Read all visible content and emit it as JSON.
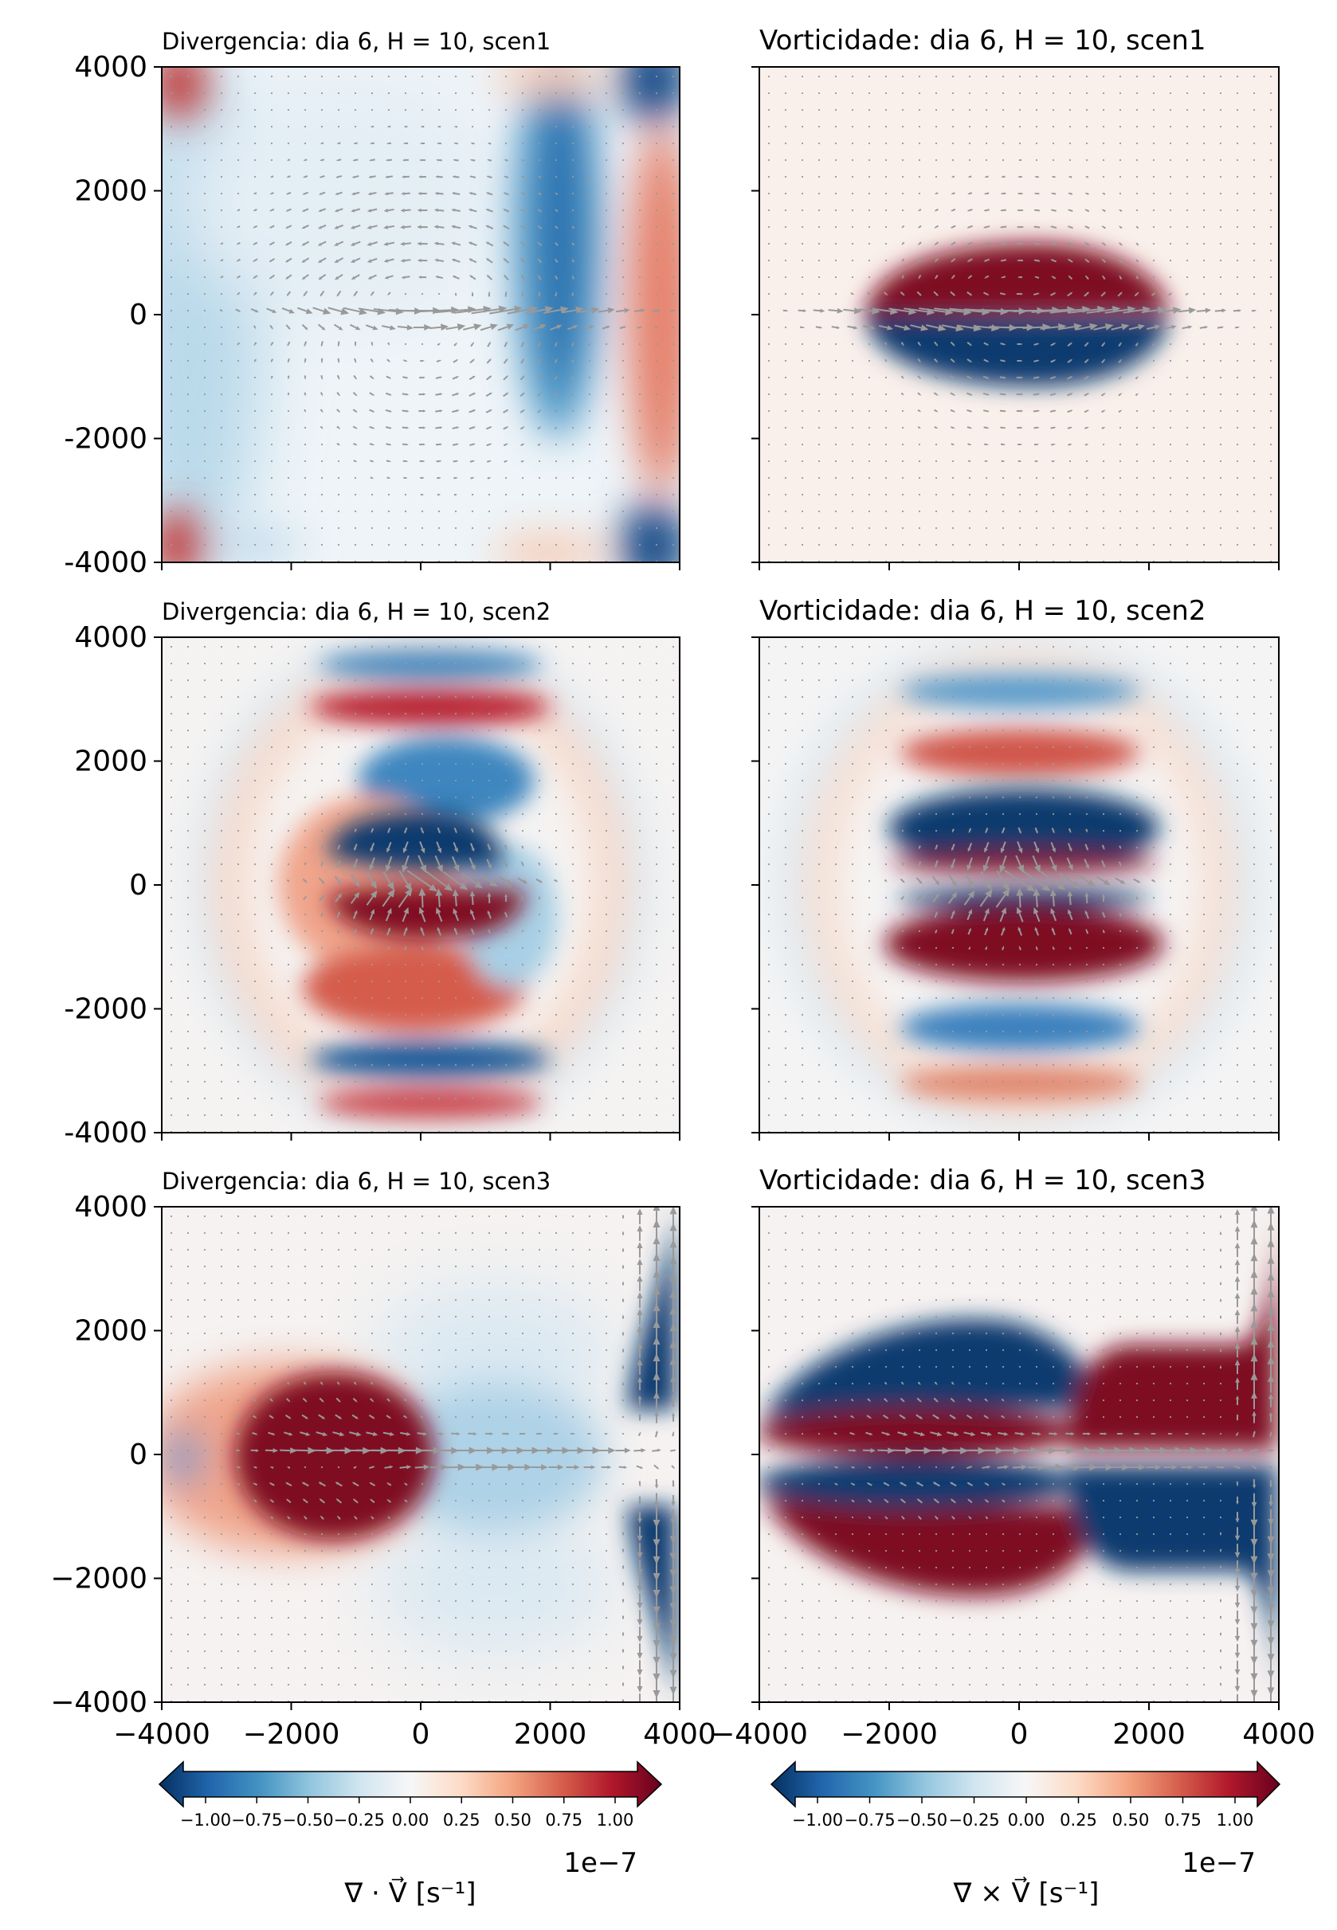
{
  "figure": {
    "colors": {
      "colormap": [
        "#053061",
        "#2166ac",
        "#4393c3",
        "#92c5de",
        "#d1e5f0",
        "#f7f7f7",
        "#fddbc7",
        "#f4a582",
        "#d6604d",
        "#b2182b",
        "#67001f"
      ],
      "arrows": "#999999"
    }
  },
  "chart_data": [
    {
      "type": "heatmap",
      "title": "Divergencia: dia 6, H = 10, scen1",
      "xlim": [
        -4000,
        4000
      ],
      "ylim": [
        -4000,
        4000
      ],
      "xticks": [
        "-4000",
        "-2000",
        "0",
        "2000",
        "4000"
      ],
      "yticks": [
        "4000",
        "2000",
        "0",
        "-2000",
        "-4000"
      ],
      "show_xticklabels": false,
      "show_yticklabels": true,
      "overlay": "quiver"
    },
    {
      "type": "heatmap",
      "title": "Vorticidade: dia 6, H = 10, scen1",
      "xlim": [
        -4000,
        4000
      ],
      "ylim": [
        -4000,
        4000
      ],
      "xticks": [
        "-4000",
        "-2000",
        "0",
        "2000",
        "4000"
      ],
      "yticks": [
        "4000",
        "2000",
        "0",
        "-2000",
        "-4000"
      ],
      "show_xticklabels": false,
      "show_yticklabels": false,
      "overlay": "quiver"
    },
    {
      "type": "heatmap",
      "title": "Divergencia: dia 6, H = 10, scen2",
      "xlim": [
        -4000,
        4000
      ],
      "ylim": [
        -4000,
        4000
      ],
      "xticks": [
        "-4000",
        "-2000",
        "0",
        "2000",
        "4000"
      ],
      "yticks": [
        "4000",
        "2000",
        "0",
        "-2000",
        "-4000"
      ],
      "show_xticklabels": false,
      "show_yticklabels": true,
      "overlay": "quiver"
    },
    {
      "type": "heatmap",
      "title": "Vorticidade: dia 6, H = 10, scen2",
      "xlim": [
        -4000,
        4000
      ],
      "ylim": [
        -4000,
        4000
      ],
      "xticks": [
        "-4000",
        "-2000",
        "0",
        "2000",
        "4000"
      ],
      "yticks": [
        "4000",
        "2000",
        "0",
        "-2000",
        "-4000"
      ],
      "show_xticklabels": false,
      "show_yticklabels": false,
      "overlay": "quiver"
    },
    {
      "type": "heatmap",
      "title": "Divergencia: dia 6, H = 10, scen3",
      "xlim": [
        -4000,
        4000
      ],
      "ylim": [
        -4000,
        4000
      ],
      "xticks": [
        "−4000",
        "−2000",
        "0",
        "2000",
        "4000"
      ],
      "yticks": [
        "4000",
        "2000",
        "0",
        "−2000",
        "−4000"
      ],
      "show_xticklabels": true,
      "show_yticklabels": true,
      "overlay": "quiver"
    },
    {
      "type": "heatmap",
      "title": "Vorticidade: dia 6, H = 10, scen3",
      "xlim": [
        -4000,
        4000
      ],
      "ylim": [
        -4000,
        4000
      ],
      "xticks": [
        "−4000",
        "−2000",
        "0",
        "2000",
        "4000"
      ],
      "yticks": [
        "4000",
        "2000",
        "0",
        "−2000",
        "−4000"
      ],
      "show_xticklabels": true,
      "show_yticklabels": false,
      "overlay": "quiver"
    }
  ],
  "colorbars": [
    {
      "ticks": [
        "−1.00",
        "−0.75",
        "−0.50",
        "−0.25",
        "0.00",
        "0.25",
        "0.50",
        "0.75",
        "1.00"
      ],
      "label": "∇ · V⃗ [s⁻¹]",
      "exponent": "1e−7",
      "range": [
        -1,
        1
      ]
    },
    {
      "ticks": [
        "−1.00",
        "−0.75",
        "−0.50",
        "−0.25",
        "0.00",
        "0.25",
        "0.50",
        "0.75",
        "1.00"
      ],
      "label": "∇ × V⃗ [s⁻¹]",
      "exponent": "1e−7",
      "range": [
        -1,
        1
      ]
    }
  ]
}
